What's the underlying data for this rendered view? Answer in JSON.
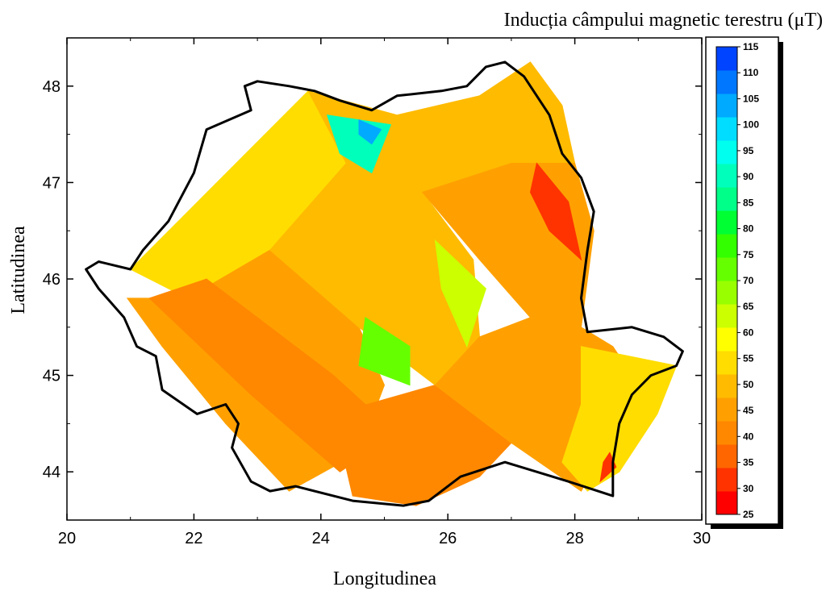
{
  "chart_data": {
    "type": "heatmap",
    "title": "",
    "colorbar_title": "Inducția câmpului magnetic terestru (μT)",
    "xlabel": "Longitudinea",
    "ylabel": "Latitudinea",
    "xlim": [
      20,
      30
    ],
    "ylim": [
      43.5,
      48.5
    ],
    "x_ticks": [
      20,
      22,
      24,
      26,
      28,
      30
    ],
    "y_ticks": [
      44,
      45,
      46,
      47,
      48
    ],
    "colorbar": {
      "min": 25,
      "max": 115,
      "step": 5,
      "labels": [
        115,
        110,
        105,
        100,
        95,
        90,
        85,
        80,
        75,
        70,
        65,
        60,
        55,
        50,
        45,
        40,
        35,
        30,
        25
      ],
      "colors": [
        "#ff0000",
        "#ff3300",
        "#ff6600",
        "#ff8800",
        "#ffa000",
        "#ffbb00",
        "#ffdd00",
        "#ffff00",
        "#ccff00",
        "#99ff00",
        "#66ff00",
        "#33ff00",
        "#00ff33",
        "#00ff88",
        "#00ffbb",
        "#00ffee",
        "#00ddff",
        "#00aaff",
        "#0077ff",
        "#0044ff"
      ]
    },
    "regions": [
      {
        "name": "northwest",
        "value": 55,
        "polygon": [
          [
            21.0,
            46.1
          ],
          [
            23.8,
            47.95
          ],
          [
            24.4,
            47.2
          ],
          [
            23.2,
            46.3
          ],
          [
            21.9,
            45.8
          ]
        ]
      },
      {
        "name": "west",
        "value": 48,
        "polygon": [
          [
            20.95,
            45.8
          ],
          [
            21.9,
            45.8
          ],
          [
            23.2,
            46.3
          ],
          [
            24.6,
            45.5
          ],
          [
            25.0,
            44.9
          ],
          [
            24.6,
            44.2
          ],
          [
            23.5,
            43.8
          ],
          [
            22.5,
            44.5
          ],
          [
            21.5,
            45.3
          ]
        ]
      },
      {
        "name": "southwest-band",
        "value": 40,
        "polygon": [
          [
            21.3,
            45.8
          ],
          [
            22.2,
            46.0
          ],
          [
            24.2,
            45.0
          ],
          [
            25.2,
            44.4
          ],
          [
            24.3,
            44.0
          ],
          [
            22.9,
            44.8
          ]
        ]
      },
      {
        "name": "south",
        "value": 42,
        "polygon": [
          [
            24.2,
            44.6
          ],
          [
            25.8,
            44.9
          ],
          [
            27.0,
            44.3
          ],
          [
            26.5,
            43.95
          ],
          [
            25.5,
            43.65
          ],
          [
            24.5,
            43.75
          ]
        ]
      },
      {
        "name": "center",
        "value": 50,
        "polygon": [
          [
            24.4,
            47.2
          ],
          [
            25.6,
            46.9
          ],
          [
            26.4,
            46.2
          ],
          [
            26.5,
            45.4
          ],
          [
            25.8,
            44.9
          ],
          [
            24.6,
            45.5
          ],
          [
            23.2,
            46.3
          ]
        ]
      },
      {
        "name": "north-center",
        "value": 52,
        "polygon": [
          [
            23.8,
            47.95
          ],
          [
            25.2,
            47.7
          ],
          [
            26.5,
            47.9
          ],
          [
            27.0,
            47.2
          ],
          [
            25.6,
            46.9
          ],
          [
            24.4,
            47.2
          ]
        ]
      },
      {
        "name": "northeast",
        "value": 53,
        "polygon": [
          [
            26.5,
            47.9
          ],
          [
            27.3,
            48.25
          ],
          [
            27.8,
            47.8
          ],
          [
            28.0,
            47.2
          ],
          [
            27.3,
            47.0
          ],
          [
            27.0,
            47.2
          ]
        ]
      },
      {
        "name": "east",
        "value": 47,
        "polygon": [
          [
            27.0,
            47.2
          ],
          [
            28.0,
            47.2
          ],
          [
            28.3,
            46.5
          ],
          [
            28.1,
            45.5
          ],
          [
            27.3,
            45.6
          ],
          [
            26.5,
            46.2
          ],
          [
            25.6,
            46.9
          ]
        ]
      },
      {
        "name": "southeast",
        "value": 49,
        "polygon": [
          [
            26.5,
            45.4
          ],
          [
            27.3,
            45.6
          ],
          [
            28.1,
            45.5
          ],
          [
            28.6,
            45.3
          ],
          [
            28.9,
            45.0
          ],
          [
            28.6,
            44.4
          ],
          [
            28.1,
            43.8
          ],
          [
            27.0,
            44.3
          ],
          [
            25.8,
            44.9
          ]
        ]
      },
      {
        "name": "dobrogea",
        "value": 56,
        "polygon": [
          [
            28.1,
            45.3
          ],
          [
            29.6,
            45.1
          ],
          [
            29.3,
            44.6
          ],
          [
            28.7,
            44.0
          ],
          [
            28.2,
            43.8
          ],
          [
            27.8,
            44.1
          ],
          [
            28.1,
            44.7
          ]
        ]
      },
      {
        "name": "anomaly-north",
        "value": 95,
        "polygon": [
          [
            24.1,
            47.7
          ],
          [
            25.1,
            47.6
          ],
          [
            24.8,
            47.1
          ],
          [
            24.3,
            47.3
          ]
        ]
      },
      {
        "name": "anomaly-north-core",
        "value": 110,
        "polygon": [
          [
            24.6,
            47.65
          ],
          [
            24.95,
            47.55
          ],
          [
            24.8,
            47.4
          ],
          [
            24.6,
            47.5
          ]
        ]
      },
      {
        "name": "anomaly-center",
        "value": 68,
        "polygon": [
          [
            25.8,
            46.4
          ],
          [
            26.6,
            45.9
          ],
          [
            26.3,
            45.3
          ],
          [
            25.9,
            45.9
          ]
        ]
      },
      {
        "name": "anomaly-south",
        "value": 75,
        "polygon": [
          [
            24.7,
            45.6
          ],
          [
            25.4,
            45.3
          ],
          [
            25.4,
            44.9
          ],
          [
            24.6,
            45.1
          ]
        ]
      },
      {
        "name": "anomaly-east",
        "value": 30,
        "polygon": [
          [
            27.4,
            47.2
          ],
          [
            27.9,
            46.8
          ],
          [
            28.1,
            46.2
          ],
          [
            27.6,
            46.5
          ],
          [
            27.3,
            46.9
          ]
        ]
      },
      {
        "name": "anomaly-southeast",
        "value": 30,
        "polygon": [
          [
            28.55,
            44.2
          ],
          [
            28.65,
            44.05
          ],
          [
            28.4,
            43.9
          ],
          [
            28.45,
            44.1
          ]
        ]
      }
    ],
    "border": [
      [
        21.0,
        46.1
      ],
      [
        20.5,
        46.18
      ],
      [
        20.3,
        46.1
      ],
      [
        20.5,
        45.9
      ],
      [
        20.7,
        45.75
      ],
      [
        20.9,
        45.6
      ],
      [
        21.1,
        45.3
      ],
      [
        21.4,
        45.2
      ],
      [
        21.5,
        44.85
      ],
      [
        22.05,
        44.6
      ],
      [
        22.5,
        44.7
      ],
      [
        22.7,
        44.5
      ],
      [
        22.6,
        44.25
      ],
      [
        22.9,
        43.9
      ],
      [
        23.2,
        43.8
      ],
      [
        23.6,
        43.85
      ],
      [
        24.5,
        43.7
      ],
      [
        25.3,
        43.65
      ],
      [
        25.7,
        43.7
      ],
      [
        26.2,
        43.95
      ],
      [
        26.9,
        44.1
      ],
      [
        27.4,
        44.0
      ],
      [
        27.9,
        43.9
      ],
      [
        28.6,
        43.75
      ],
      [
        28.6,
        44.1
      ],
      [
        28.7,
        44.5
      ],
      [
        28.9,
        44.8
      ],
      [
        29.2,
        45.0
      ],
      [
        29.6,
        45.1
      ],
      [
        29.7,
        45.25
      ],
      [
        29.4,
        45.4
      ],
      [
        28.9,
        45.5
      ],
      [
        28.2,
        45.45
      ],
      [
        28.1,
        45.8
      ],
      [
        28.2,
        46.3
      ],
      [
        28.3,
        46.7
      ],
      [
        28.1,
        47.05
      ],
      [
        27.8,
        47.3
      ],
      [
        27.6,
        47.7
      ],
      [
        27.2,
        48.1
      ],
      [
        26.9,
        48.25
      ],
      [
        26.6,
        48.2
      ],
      [
        26.3,
        48.0
      ],
      [
        25.9,
        47.95
      ],
      [
        25.2,
        47.9
      ],
      [
        24.8,
        47.75
      ],
      [
        24.3,
        47.85
      ],
      [
        23.9,
        47.95
      ],
      [
        23.5,
        48.0
      ],
      [
        23.0,
        48.05
      ],
      [
        22.8,
        48.0
      ],
      [
        22.9,
        47.75
      ],
      [
        22.2,
        47.55
      ],
      [
        22.0,
        47.1
      ],
      [
        21.6,
        46.6
      ],
      [
        21.2,
        46.3
      ]
    ]
  }
}
